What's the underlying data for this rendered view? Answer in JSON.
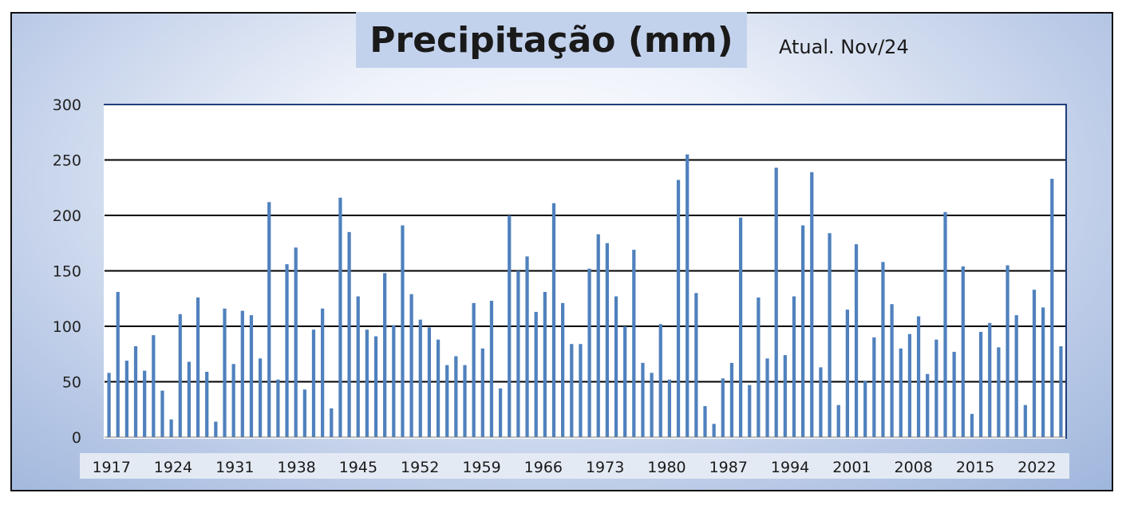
{
  "chart_data": {
    "type": "bar",
    "title": "Precipitação (mm)",
    "subtitle": "Atual. Nov/24",
    "xlabel": "",
    "ylabel": "",
    "ylim": [
      0,
      300
    ],
    "yticks": [
      0,
      50,
      100,
      150,
      200,
      250,
      300
    ],
    "grid": true,
    "bar_color": "#4f81bd",
    "x": [
      1917,
      1918,
      1919,
      1920,
      1921,
      1922,
      1923,
      1924,
      1925,
      1926,
      1927,
      1928,
      1929,
      1930,
      1931,
      1932,
      1933,
      1934,
      1935,
      1936,
      1937,
      1938,
      1939,
      1940,
      1941,
      1942,
      1943,
      1944,
      1945,
      1946,
      1947,
      1948,
      1949,
      1950,
      1951,
      1952,
      1953,
      1954,
      1955,
      1956,
      1957,
      1958,
      1959,
      1960,
      1961,
      1962,
      1963,
      1964,
      1965,
      1966,
      1967,
      1968,
      1969,
      1970,
      1971,
      1972,
      1973,
      1974,
      1975,
      1976,
      1977,
      1978,
      1979,
      1980,
      1981,
      1982,
      1983,
      1984,
      1985,
      1986,
      1987,
      1988,
      1989,
      1990,
      1991,
      1992,
      1993,
      1994,
      1995,
      1996,
      1997,
      1998,
      1999,
      2000,
      2001,
      2002,
      2003,
      2004,
      2005,
      2006,
      2007,
      2008,
      2009,
      2010,
      2011,
      2012,
      2013,
      2014,
      2015,
      2016,
      2017,
      2018,
      2019,
      2020,
      2021,
      2022,
      2023,
      2024
    ],
    "xtick_labels": [
      "1917",
      "1924",
      "1931",
      "1938",
      "1945",
      "1952",
      "1959",
      "1966",
      "1973",
      "1980",
      "1987",
      "1994",
      "2001",
      "2008",
      "2015",
      "2022"
    ],
    "values": [
      58,
      131,
      69,
      82,
      60,
      92,
      42,
      16,
      111,
      68,
      126,
      59,
      14,
      116,
      66,
      114,
      110,
      71,
      212,
      52,
      156,
      171,
      43,
      97,
      116,
      26,
      216,
      185,
      127,
      97,
      91,
      148,
      101,
      191,
      129,
      106,
      99,
      88,
      65,
      73,
      65,
      121,
      80,
      123,
      44,
      200,
      150,
      163,
      113,
      131,
      211,
      121,
      84,
      84,
      152,
      183,
      175,
      127,
      100,
      169,
      67,
      58,
      102,
      52,
      232,
      255,
      130,
      28,
      12,
      53,
      67,
      198,
      47,
      126,
      71,
      243,
      74,
      127,
      191,
      239,
      63,
      184,
      29,
      115,
      174,
      51,
      90,
      158,
      120,
      80,
      93,
      109,
      57,
      88,
      203,
      77,
      154,
      21,
      95,
      103,
      81,
      155,
      110,
      29,
      133,
      117,
      233,
      82
    ]
  }
}
